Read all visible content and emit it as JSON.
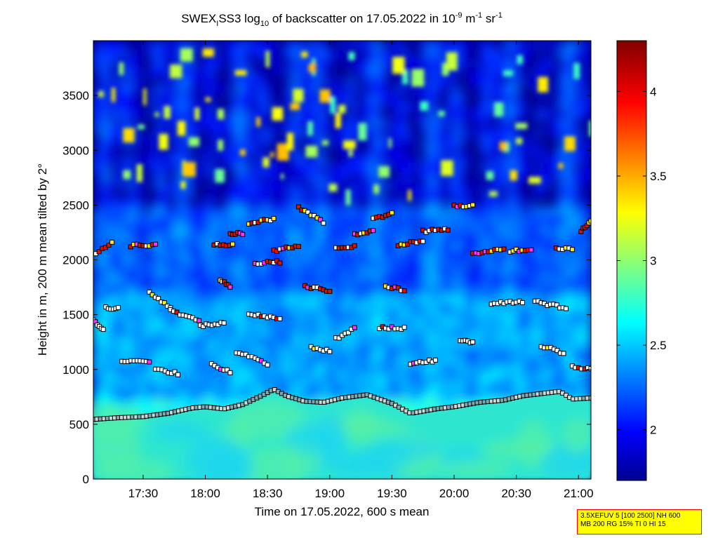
{
  "chart_data": {
    "type": "heatmap",
    "title": {
      "part1": "SWEX",
      "sub1": "I",
      "part2": "SS3 log",
      "sub2": "10",
      "part3": " of backscatter on 17.05.2022 in 10",
      "sup1": "-9",
      "part4": " m",
      "sup2": "-1",
      "part5": " sr",
      "sup3": "-1"
    },
    "xlabel": "Time on 17.05.2022, 600 s mean",
    "ylabel": "Height in m, 200 m mean tilted by 2°",
    "x_range_hours": [
      17.1,
      21.1
    ],
    "y_range": [
      0,
      4000
    ],
    "x_ticks": [
      {
        "hour": 17.5,
        "label": "17:30"
      },
      {
        "hour": 18.0,
        "label": "18:00"
      },
      {
        "hour": 18.5,
        "label": "18:30"
      },
      {
        "hour": 19.0,
        "label": "19:00"
      },
      {
        "hour": 19.5,
        "label": "19:30"
      },
      {
        "hour": 20.0,
        "label": "20:00"
      },
      {
        "hour": 20.5,
        "label": "20:30"
      },
      {
        "hour": 21.0,
        "label": "21:00"
      }
    ],
    "y_ticks": [
      0,
      500,
      1000,
      1500,
      2000,
      2500,
      3000,
      3500
    ],
    "colorbar": {
      "range": [
        1.7,
        4.3
      ],
      "ticks": [
        "2",
        "2.5",
        "3",
        "3.5",
        "4"
      ],
      "colormap": "jet"
    },
    "boundary_layer": {
      "hours": [
        17.1,
        17.3,
        17.5,
        17.7,
        17.9,
        18.0,
        18.15,
        18.3,
        18.45,
        18.55,
        18.65,
        18.8,
        18.95,
        19.1,
        19.3,
        19.5,
        19.65,
        19.85,
        20.0,
        20.2,
        20.4,
        20.55,
        20.7,
        20.85,
        20.95,
        21.1
      ],
      "heights": [
        545,
        560,
        570,
        600,
        650,
        660,
        640,
        680,
        760,
        820,
        760,
        710,
        700,
        740,
        770,
        690,
        600,
        640,
        660,
        700,
        720,
        760,
        780,
        800,
        730,
        740
      ]
    },
    "layers": [
      {
        "h0": 17.12,
        "h1": 17.25,
        "y0": 2060,
        "y1": 2160
      },
      {
        "h0": 17.4,
        "h1": 17.6,
        "y0": 2130,
        "y1": 2140
      },
      {
        "h0": 17.55,
        "h1": 17.72,
        "y0": 1700,
        "y1": 1560
      },
      {
        "h0": 17.72,
        "h1": 17.95,
        "y0": 1540,
        "y1": 1450
      },
      {
        "h0": 17.2,
        "h1": 17.3,
        "y0": 1560,
        "y1": 1560
      },
      {
        "h0": 17.1,
        "h1": 17.18,
        "y0": 1440,
        "y1": 1360
      },
      {
        "h0": 17.33,
        "h1": 17.55,
        "y0": 1080,
        "y1": 1070
      },
      {
        "h0": 17.6,
        "h1": 17.78,
        "y0": 1010,
        "y1": 960
      },
      {
        "h0": 17.96,
        "h1": 18.15,
        "y0": 1400,
        "y1": 1420
      },
      {
        "h0": 18.12,
        "h1": 18.2,
        "y0": 1810,
        "y1": 1760
      },
      {
        "h0": 18.07,
        "h1": 18.22,
        "y0": 2140,
        "y1": 2140
      },
      {
        "h0": 18.2,
        "h1": 18.3,
        "y0": 2240,
        "y1": 2240
      },
      {
        "h0": 18.05,
        "h1": 18.2,
        "y0": 1040,
        "y1": 980
      },
      {
        "h0": 18.25,
        "h1": 18.5,
        "y0": 1160,
        "y1": 1050
      },
      {
        "h0": 18.35,
        "h1": 18.6,
        "y0": 1510,
        "y1": 1460
      },
      {
        "h0": 18.4,
        "h1": 18.6,
        "y0": 1970,
        "y1": 1980
      },
      {
        "h0": 18.55,
        "h1": 18.75,
        "y0": 2080,
        "y1": 2130
      },
      {
        "h0": 18.35,
        "h1": 18.55,
        "y0": 2340,
        "y1": 2370
      },
      {
        "h0": 18.75,
        "h1": 18.95,
        "y0": 2480,
        "y1": 2340
      },
      {
        "h0": 18.8,
        "h1": 19.0,
        "y0": 1760,
        "y1": 1720
      },
      {
        "h0": 18.85,
        "h1": 19.0,
        "y0": 1200,
        "y1": 1170
      },
      {
        "h0": 19.05,
        "h1": 19.2,
        "y0": 2100,
        "y1": 2130
      },
      {
        "h0": 19.2,
        "h1": 19.35,
        "y0": 2230,
        "y1": 2260
      },
      {
        "h0": 19.35,
        "h1": 19.5,
        "y0": 2380,
        "y1": 2420
      },
      {
        "h0": 19.05,
        "h1": 19.2,
        "y0": 1280,
        "y1": 1380
      },
      {
        "h0": 19.4,
        "h1": 19.6,
        "y0": 1380,
        "y1": 1380
      },
      {
        "h0": 19.45,
        "h1": 19.6,
        "y0": 1760,
        "y1": 1720
      },
      {
        "h0": 19.55,
        "h1": 19.75,
        "y0": 2140,
        "y1": 2170
      },
      {
        "h0": 19.75,
        "h1": 19.95,
        "y0": 2260,
        "y1": 2280
      },
      {
        "h0": 19.65,
        "h1": 19.85,
        "y0": 1060,
        "y1": 1080
      },
      {
        "h0": 20.05,
        "h1": 20.15,
        "y0": 1270,
        "y1": 1250
      },
      {
        "h0": 20.0,
        "h1": 20.15,
        "y0": 2490,
        "y1": 2490
      },
      {
        "h0": 20.15,
        "h1": 20.4,
        "y0": 2050,
        "y1": 2100
      },
      {
        "h0": 20.3,
        "h1": 20.55,
        "y0": 1600,
        "y1": 1620
      },
      {
        "h0": 20.45,
        "h1": 20.62,
        "y0": 2080,
        "y1": 2100
      },
      {
        "h0": 20.65,
        "h1": 20.9,
        "y0": 1620,
        "y1": 1560
      },
      {
        "h0": 20.7,
        "h1": 20.88,
        "y0": 1220,
        "y1": 1150
      },
      {
        "h0": 20.82,
        "h1": 20.95,
        "y0": 2100,
        "y1": 2100
      },
      {
        "h0": 20.95,
        "h1": 21.1,
        "y0": 1020,
        "y1": 1000
      },
      {
        "h0": 21.02,
        "h1": 21.1,
        "y0": 2260,
        "y1": 2360
      }
    ]
  },
  "info_box": {
    "line1": "3.5XEFUV 5 [100 2500] NH 600",
    "line2": "MB 200 RG 15% TI 0 HI 15"
  }
}
